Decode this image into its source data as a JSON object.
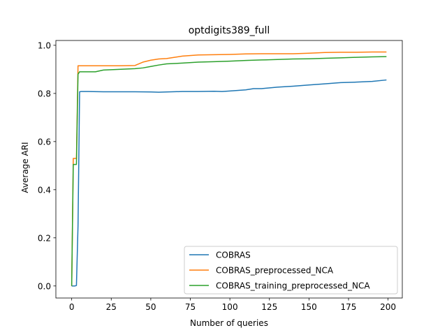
{
  "chart_data": {
    "type": "line",
    "title": "optdigits389_full",
    "xlabel": "Number of queries",
    "ylabel": "Average ARI",
    "xlim": [
      -10,
      209
    ],
    "ylim": [
      -0.05,
      1.02
    ],
    "xticks": [
      0,
      25,
      50,
      75,
      100,
      125,
      150,
      175,
      200
    ],
    "yticks": [
      0.0,
      0.2,
      0.4,
      0.6,
      0.8,
      1.0
    ],
    "xtick_labels": [
      "0",
      "25",
      "50",
      "75",
      "100",
      "125",
      "150",
      "175",
      "200"
    ],
    "ytick_labels": [
      "0.0",
      "0.2",
      "0.4",
      "0.6",
      "0.8",
      "1.0"
    ],
    "grid": false,
    "legend_position": "lower-right",
    "series": [
      {
        "name": "COBRAS",
        "color": "#1f77b4",
        "points": [
          [
            0,
            0.0
          ],
          [
            1,
            0.0
          ],
          [
            2,
            0.0
          ],
          [
            3,
            0.002
          ],
          [
            4,
            0.25
          ],
          [
            5,
            0.807
          ],
          [
            6,
            0.808
          ],
          [
            10,
            0.808
          ],
          [
            20,
            0.807
          ],
          [
            30,
            0.807
          ],
          [
            40,
            0.807
          ],
          [
            50,
            0.806
          ],
          [
            55,
            0.805
          ],
          [
            60,
            0.806
          ],
          [
            70,
            0.808
          ],
          [
            80,
            0.808
          ],
          [
            90,
            0.809
          ],
          [
            95,
            0.808
          ],
          [
            100,
            0.81
          ],
          [
            110,
            0.815
          ],
          [
            115,
            0.82
          ],
          [
            120,
            0.82
          ],
          [
            130,
            0.826
          ],
          [
            140,
            0.83
          ],
          [
            150,
            0.835
          ],
          [
            160,
            0.84
          ],
          [
            170,
            0.845
          ],
          [
            180,
            0.847
          ],
          [
            190,
            0.85
          ],
          [
            199,
            0.856
          ]
        ]
      },
      {
        "name": "COBRAS_preprocessed_NCA",
        "color": "#ff7f0e",
        "points": [
          [
            0,
            0.0
          ],
          [
            1,
            0.53
          ],
          [
            2,
            0.53
          ],
          [
            3,
            0.53
          ],
          [
            4,
            0.915
          ],
          [
            10,
            0.915
          ],
          [
            20,
            0.915
          ],
          [
            30,
            0.915
          ],
          [
            40,
            0.916
          ],
          [
            45,
            0.93
          ],
          [
            50,
            0.938
          ],
          [
            55,
            0.943
          ],
          [
            60,
            0.945
          ],
          [
            65,
            0.95
          ],
          [
            70,
            0.955
          ],
          [
            80,
            0.96
          ],
          [
            90,
            0.961
          ],
          [
            100,
            0.962
          ],
          [
            110,
            0.964
          ],
          [
            120,
            0.965
          ],
          [
            130,
            0.965
          ],
          [
            140,
            0.965
          ],
          [
            150,
            0.967
          ],
          [
            160,
            0.97
          ],
          [
            170,
            0.971
          ],
          [
            180,
            0.971
          ],
          [
            190,
            0.972
          ],
          [
            199,
            0.972
          ]
        ]
      },
      {
        "name": "COBRAS_training_preprocessed_NCA",
        "color": "#2ca02c",
        "points": [
          [
            0,
            0.0
          ],
          [
            1,
            0.505
          ],
          [
            2,
            0.505
          ],
          [
            3,
            0.505
          ],
          [
            4,
            0.88
          ],
          [
            5,
            0.89
          ],
          [
            10,
            0.89
          ],
          [
            15,
            0.89
          ],
          [
            20,
            0.897
          ],
          [
            30,
            0.9
          ],
          [
            40,
            0.903
          ],
          [
            45,
            0.906
          ],
          [
            50,
            0.912
          ],
          [
            55,
            0.918
          ],
          [
            60,
            0.923
          ],
          [
            70,
            0.926
          ],
          [
            80,
            0.93
          ],
          [
            90,
            0.932
          ],
          [
            100,
            0.934
          ],
          [
            110,
            0.937
          ],
          [
            120,
            0.939
          ],
          [
            130,
            0.941
          ],
          [
            140,
            0.943
          ],
          [
            150,
            0.944
          ],
          [
            160,
            0.946
          ],
          [
            170,
            0.948
          ],
          [
            180,
            0.95
          ],
          [
            190,
            0.952
          ],
          [
            199,
            0.953
          ]
        ]
      }
    ]
  }
}
